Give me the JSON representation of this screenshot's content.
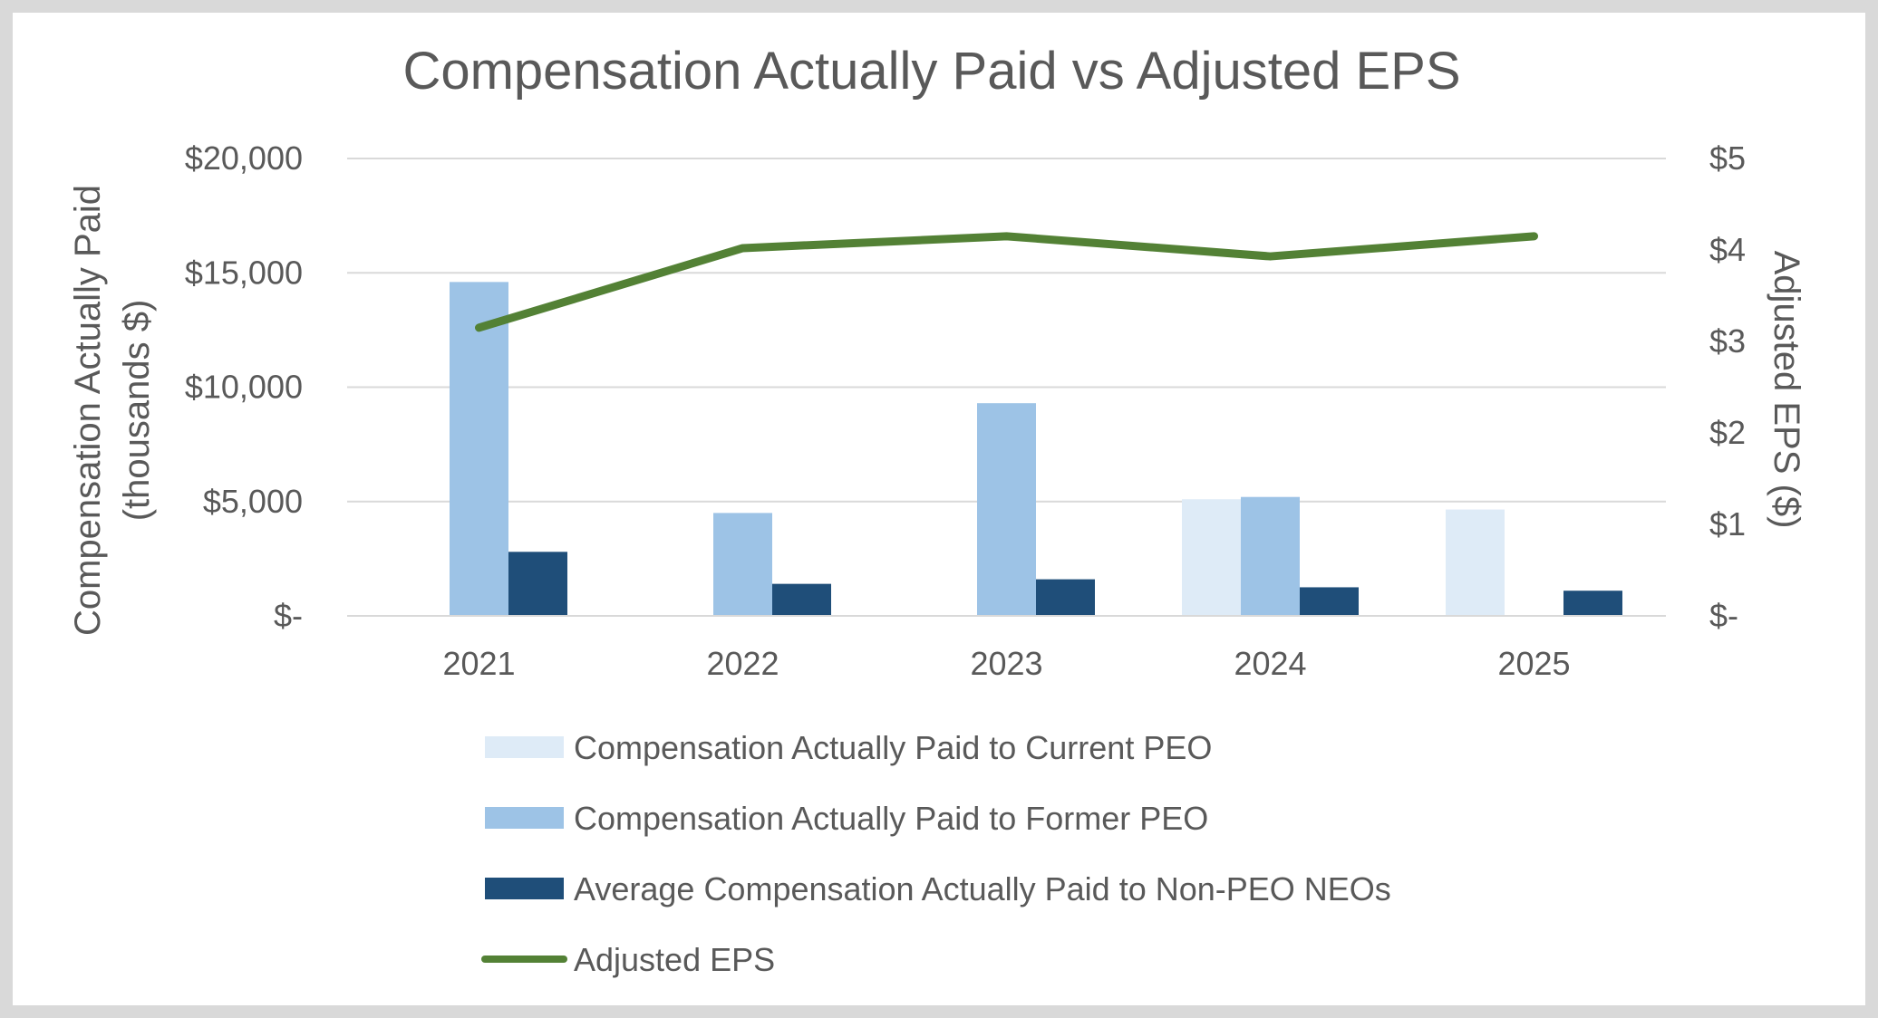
{
  "chart_data": {
    "type": "bar+line",
    "title": "Compensation Actually Paid vs Adjusted EPS",
    "categories": [
      "2021",
      "2022",
      "2023",
      "2024",
      "2025"
    ],
    "series": [
      {
        "name": "Compensation Actually Paid to Current PEO",
        "kind": "bar",
        "axis": "left",
        "color": "#deebf7",
        "values": [
          null,
          null,
          null,
          5100,
          4650
        ]
      },
      {
        "name": "Compensation Actually Paid to Former PEO",
        "kind": "bar",
        "axis": "left",
        "color": "#9dc3e6",
        "values": [
          14600,
          4500,
          9300,
          5200,
          null
        ]
      },
      {
        "name": "Average Compensation Actually Paid to Non-PEO NEOs",
        "kind": "bar",
        "axis": "left",
        "color": "#1f4e79",
        "values": [
          2800,
          1400,
          1600,
          1250,
          1100
        ]
      },
      {
        "name": "Adjusted EPS",
        "kind": "line",
        "axis": "right",
        "color": "#538135",
        "values": [
          3.15,
          4.02,
          4.15,
          3.93,
          4.15
        ]
      }
    ],
    "left_axis": {
      "label_line1": "Compensation Actually Paid",
      "label_line2": "(thousands $)",
      "range": [
        0,
        20000
      ],
      "ticks": [
        0,
        5000,
        10000,
        15000,
        20000
      ],
      "tick_labels": [
        "$-",
        "$5,000",
        "$10,000",
        "$15,000",
        "$20,000"
      ]
    },
    "right_axis": {
      "label": "Adjusted EPS ($)",
      "range": [
        0,
        5
      ],
      "ticks": [
        0,
        1,
        2,
        3,
        4,
        5
      ],
      "tick_labels": [
        "$-",
        "$1",
        "$2",
        "$3",
        "$4",
        "$5"
      ]
    },
    "gridlines": true,
    "legend_position": "bottom"
  }
}
